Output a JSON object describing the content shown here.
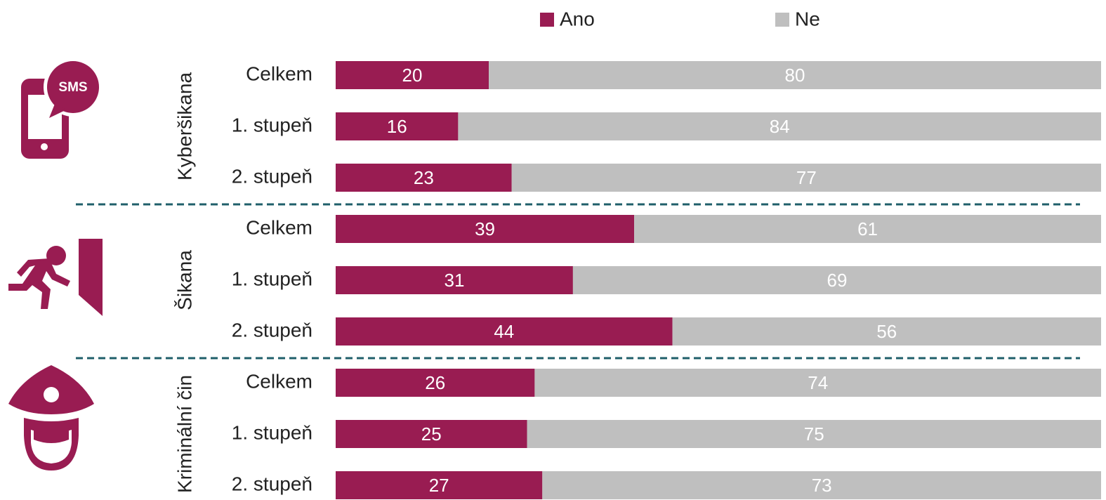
{
  "chart_data": {
    "type": "stacked-bar-horizontal",
    "groups": [
      {
        "name": "Kyberšikana",
        "icon_text": "SMS",
        "categories": [
          "Celkem",
          "1. stupeň",
          "2. stupeň"
        ]
      },
      {
        "name": "Šikana",
        "categories": [
          "Celkem",
          "1. stupeň",
          "2. stupeň"
        ]
      },
      {
        "name": "Kriminální čin",
        "categories": [
          "Celkem",
          "1. stupeň",
          "2. stupeň"
        ]
      }
    ],
    "series": [
      {
        "name": "Ano",
        "color": "#991c52",
        "values": [
          20,
          16,
          23,
          39,
          31,
          44,
          26,
          25,
          27
        ]
      },
      {
        "name": "Ne",
        "color": "#bfbfbf",
        "values": [
          80,
          84,
          77,
          61,
          69,
          56,
          74,
          75,
          73
        ]
      }
    ],
    "xlim": [
      0,
      100
    ]
  }
}
